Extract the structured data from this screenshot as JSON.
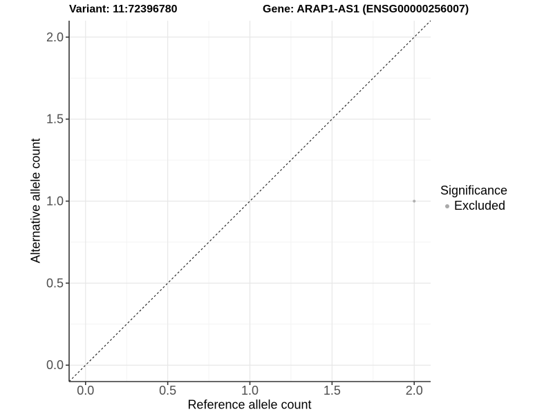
{
  "chart_data": {
    "type": "scatter",
    "titles": {
      "variant": "Variant: 11:72396780",
      "gene": "Gene: ARAP1-AS1 (ENSG00000256007)"
    },
    "xlabel": "Reference allele count",
    "ylabel": "Alternative allele count",
    "xlim": [
      -0.1,
      2.1
    ],
    "ylim": [
      -0.1,
      2.1
    ],
    "x_major_ticks": [
      0,
      0.5,
      1,
      1.5,
      2
    ],
    "x_tick_labels": [
      "0.0",
      "0.5",
      "1.0",
      "1.5",
      "2.0"
    ],
    "y_major_ticks": [
      0,
      0.5,
      1,
      1.5,
      2
    ],
    "y_tick_labels": [
      "0.0",
      "0.5",
      "1.0",
      "1.5",
      "2.0"
    ],
    "x_minor_ticks": [
      0.25,
      0.75,
      1.25,
      1.75
    ],
    "y_minor_ticks": [
      0.25,
      0.75,
      1.25,
      1.75
    ],
    "grid": {
      "major": true,
      "minor": true
    },
    "reference_line": {
      "kind": "identity",
      "style": "dashed",
      "from": [
        -0.1,
        -0.1
      ],
      "to": [
        2.1,
        2.1
      ]
    },
    "series": [
      {
        "name": "Excluded",
        "color": "#b0b0b0",
        "points": [
          {
            "x": 2.0,
            "y": 1.0
          }
        ]
      }
    ],
    "legend": {
      "title": "Significance",
      "position": "right",
      "entries": [
        {
          "label": "Excluded",
          "color": "#a9a9a9"
        }
      ]
    }
  },
  "style": {
    "background": "#ffffff",
    "axis_line_color": "#333333",
    "tick_color": "#333333",
    "tick_label_color": "#4d4d4d",
    "grid_major_color": "#e7e7e7",
    "grid_minor_color": "#f3f3f3",
    "reference_line_color": "#1a1a1a"
  }
}
